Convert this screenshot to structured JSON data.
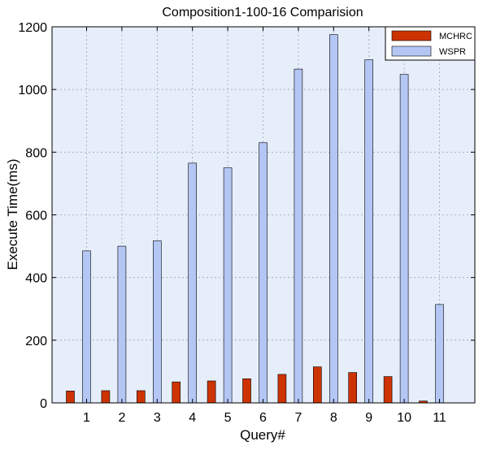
{
  "chart_data": {
    "type": "bar",
    "title": "Composition1-100-16 Comparision",
    "xlabel": "Query#",
    "ylabel": "Execute Time(ms)",
    "categories": [
      "1",
      "2",
      "3",
      "4",
      "5",
      "6",
      "7",
      "8",
      "9",
      "10",
      "11"
    ],
    "ylim": [
      0,
      1200
    ],
    "yticks": [
      0,
      200,
      400,
      600,
      800,
      1000,
      1200
    ],
    "grid": true,
    "legend_position": "top-right",
    "series": [
      {
        "name": "MCHRC",
        "color": "#cc3300",
        "values": [
          38,
          39,
          39,
          67,
          70,
          77,
          91,
          115,
          97,
          84,
          6
        ]
      },
      {
        "name": "WSPR",
        "color": "#b4c6f4",
        "values": [
          485,
          500,
          517,
          765,
          750,
          830,
          1065,
          1175,
          1095,
          1048,
          314
        ]
      }
    ],
    "plot_background": "#e6eefa"
  }
}
